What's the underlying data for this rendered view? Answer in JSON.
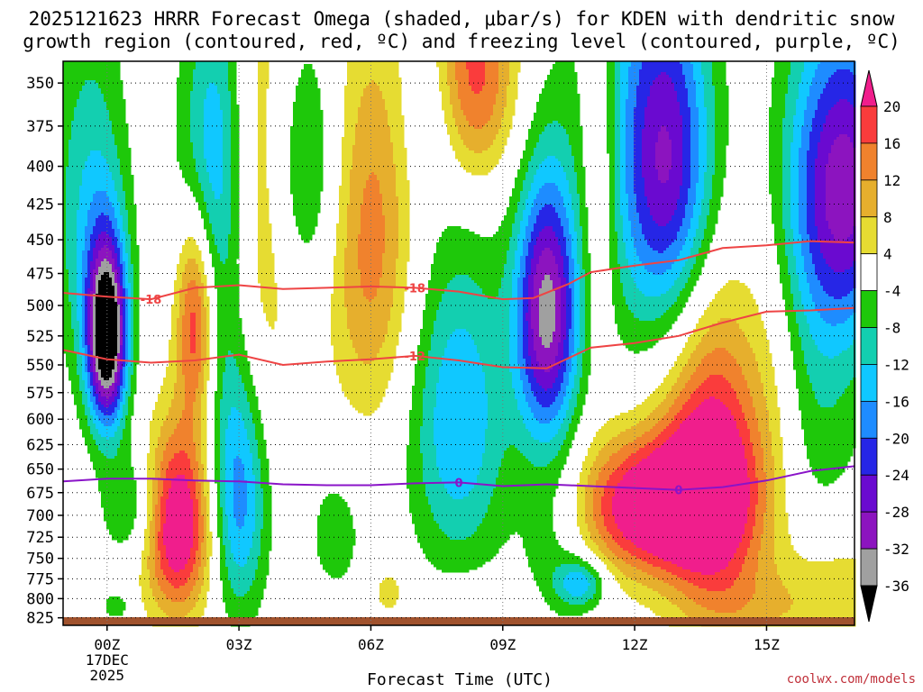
{
  "title_line1": "2025121623 HRRR Forecast Omega (shaded, μbar/s) for KDEN with dendritic snow",
  "title_line2": "growth region (contoured, red, ºC) and freezing level (contoured, purple, ºC)",
  "credit": "coolwx.com/models",
  "colors": {
    "dendritic": "#ee4444",
    "freezing": "#8a14c8",
    "ground": "#a0522d"
  },
  "chart_data": {
    "type": "heatmap",
    "xlabel": "Forecast Time (UTC)",
    "ylabel": "",
    "x_range_hours": [
      -1,
      17
    ],
    "y_range_mb": [
      338,
      835
    ],
    "y_scale": "log",
    "grid": true,
    "x_ticks": [
      {
        "hour": 0,
        "label": "00Z",
        "sub1": "17DEC",
        "sub2": "2025"
      },
      {
        "hour": 3,
        "label": "03Z"
      },
      {
        "hour": 6,
        "label": "06Z"
      },
      {
        "hour": 9,
        "label": "09Z"
      },
      {
        "hour": 12,
        "label": "12Z"
      },
      {
        "hour": 15,
        "label": "15Z"
      }
    ],
    "y_ticks": [
      350,
      375,
      400,
      425,
      450,
      475,
      500,
      525,
      550,
      575,
      600,
      625,
      650,
      675,
      700,
      725,
      750,
      775,
      800,
      825
    ],
    "colorbar": {
      "labels": [
        20,
        16,
        12,
        8,
        4,
        -4,
        -8,
        -12,
        -16,
        -20,
        -24,
        -28,
        -32,
        -36
      ],
      "bins": [
        {
          "lo": -100,
          "hi": -36,
          "color": "#000000"
        },
        {
          "lo": -36,
          "hi": -32,
          "color": "#a0a0a0"
        },
        {
          "lo": -32,
          "hi": -28,
          "color": "#8c14bf"
        },
        {
          "lo": -28,
          "hi": -24,
          "color": "#6a0ad0"
        },
        {
          "lo": -24,
          "hi": -20,
          "color": "#2626e6"
        },
        {
          "lo": -20,
          "hi": -16,
          "color": "#1e8cff"
        },
        {
          "lo": -16,
          "hi": -12,
          "color": "#10c8ff"
        },
        {
          "lo": -12,
          "hi": -8,
          "color": "#13cfb0"
        },
        {
          "lo": -8,
          "hi": -4,
          "color": "#1ec80a"
        },
        {
          "lo": -4,
          "hi": 4,
          "color": "#ffffff"
        },
        {
          "lo": 4,
          "hi": 8,
          "color": "#e6dc32"
        },
        {
          "lo": 8,
          "hi": 12,
          "color": "#e6af2d"
        },
        {
          "lo": 12,
          "hi": 16,
          "color": "#f0822d"
        },
        {
          "lo": 16,
          "hi": 20,
          "color": "#fa3c3c"
        },
        {
          "lo": 20,
          "hi": 100,
          "color": "#f01e8c"
        }
      ]
    },
    "omega_centers": [
      {
        "hour": 0.0,
        "mb": 525,
        "amp": -42,
        "sx": 0.32,
        "sy": 55
      },
      {
        "hour": -0.4,
        "mb": 430,
        "amp": -12,
        "sx": 0.6,
        "sy": 90
      },
      {
        "hour": 0.6,
        "mb": 690,
        "amp": -10,
        "sx": 0.5,
        "sy": 45
      },
      {
        "hour": 1.6,
        "mb": 710,
        "amp": 27,
        "sx": 0.55,
        "sy": 75
      },
      {
        "hour": 2.0,
        "mb": 510,
        "amp": 19,
        "sx": 0.3,
        "sy": 60
      },
      {
        "hour": 2.2,
        "mb": 390,
        "amp": -10,
        "sx": 0.5,
        "sy": 60
      },
      {
        "hour": 3.0,
        "mb": 680,
        "amp": -18,
        "sx": 0.45,
        "sy": 95
      },
      {
        "hour": 2.6,
        "mb": 430,
        "amp": -7,
        "sx": 0.4,
        "sy": 140
      },
      {
        "hour": 3.6,
        "mb": 420,
        "amp": 8,
        "sx": 0.5,
        "sy": 130
      },
      {
        "hour": 4.5,
        "mb": 400,
        "amp": -10,
        "sx": 0.6,
        "sy": 60
      },
      {
        "hour": 6.0,
        "mb": 450,
        "amp": 14,
        "sx": 0.7,
        "sy": 100
      },
      {
        "hour": 5.2,
        "mb": 720,
        "amp": -6,
        "sx": 0.5,
        "sy": 60
      },
      {
        "hour": 6.4,
        "mb": 790,
        "amp": 6,
        "sx": 0.3,
        "sy": 25
      },
      {
        "hour": 8.0,
        "mb": 600,
        "amp": -16,
        "sx": 0.8,
        "sy": 110
      },
      {
        "hour": 8.3,
        "mb": 345,
        "amp": 19,
        "sx": 0.7,
        "sy": 45
      },
      {
        "hour": 7.4,
        "mb": 360,
        "amp": -7,
        "sx": 0.5,
        "sy": 40
      },
      {
        "hour": 10.0,
        "mb": 505,
        "amp": -33,
        "sx": 0.5,
        "sy": 75
      },
      {
        "hour": 10.2,
        "mb": 720,
        "amp": -8,
        "sx": 0.6,
        "sy": 80
      },
      {
        "hour": 11.2,
        "mb": 400,
        "amp": 9,
        "sx": 0.3,
        "sy": 90
      },
      {
        "hour": 12.5,
        "mb": 690,
        "amp": 28,
        "sx": 1.3,
        "sy": 55
      },
      {
        "hour": 13.8,
        "mb": 640,
        "amp": 22,
        "sx": 0.8,
        "sy": 110
      },
      {
        "hour": 10.8,
        "mb": 780,
        "amp": -14,
        "sx": 0.4,
        "sy": 22
      },
      {
        "hour": 12.8,
        "mb": 400,
        "amp": -22,
        "sx": 0.7,
        "sy": 75
      },
      {
        "hour": 12.0,
        "mb": 370,
        "amp": -10,
        "sx": 1.0,
        "sy": 120
      },
      {
        "hour": 16.8,
        "mb": 410,
        "amp": -28,
        "sx": 0.9,
        "sy": 75
      },
      {
        "hour": 16.0,
        "mb": 560,
        "amp": -8,
        "sx": 0.9,
        "sy": 130
      },
      {
        "hour": 15.2,
        "mb": 560,
        "amp": 6,
        "sx": 0.5,
        "sy": 110
      },
      {
        "hour": 16.6,
        "mb": 800,
        "amp": 8,
        "sx": 1.0,
        "sy": 60
      },
      {
        "hour": 14.5,
        "mb": 810,
        "amp": 6,
        "sx": 1.0,
        "sy": 40
      },
      {
        "hour": 8.5,
        "mb": 810,
        "amp": 5,
        "sx": 0.8,
        "sy": 25
      },
      {
        "hour": 0.2,
        "mb": 810,
        "amp": -8,
        "sx": 0.2,
        "sy": 12
      }
    ],
    "contours": [
      {
        "label": "-18",
        "kind": "dendritic",
        "label_points": [
          {
            "hour": 1.0,
            "mb": 495
          },
          {
            "hour": 7.0,
            "mb": 486
          }
        ],
        "points": [
          [
            -1,
            490
          ],
          [
            0,
            493
          ],
          [
            1,
            495
          ],
          [
            2,
            486
          ],
          [
            3,
            484
          ],
          [
            4,
            487
          ],
          [
            5,
            486
          ],
          [
            6,
            485
          ],
          [
            7,
            486
          ],
          [
            8,
            489
          ],
          [
            9,
            495
          ],
          [
            9.7,
            494
          ],
          [
            10.5,
            483
          ],
          [
            11,
            474
          ],
          [
            12,
            469
          ],
          [
            13,
            465
          ],
          [
            14,
            456
          ],
          [
            15,
            454
          ],
          [
            16,
            451
          ],
          [
            17,
            452
          ]
        ]
      },
      {
        "label": "-12",
        "kind": "dendritic",
        "label_points": [
          {
            "hour": 7.0,
            "mb": 542
          }
        ],
        "points": [
          [
            -1,
            537
          ],
          [
            0,
            545
          ],
          [
            1,
            548
          ],
          [
            2,
            546
          ],
          [
            3,
            541
          ],
          [
            4,
            550
          ],
          [
            5,
            547
          ],
          [
            6,
            545
          ],
          [
            7,
            542
          ],
          [
            8,
            546
          ],
          [
            9,
            552
          ],
          [
            10,
            553
          ],
          [
            11,
            535
          ],
          [
            12,
            531
          ],
          [
            13,
            525
          ],
          [
            14,
            514
          ],
          [
            15,
            505
          ],
          [
            16,
            504
          ],
          [
            17,
            502
          ]
        ]
      },
      {
        "label": "0",
        "kind": "freezing",
        "label_points": [
          {
            "hour": 8.0,
            "mb": 664
          },
          {
            "hour": 13.0,
            "mb": 672
          }
        ],
        "points": [
          [
            -1,
            663
          ],
          [
            0,
            660
          ],
          [
            1,
            660
          ],
          [
            2,
            662
          ],
          [
            3,
            663
          ],
          [
            4,
            666
          ],
          [
            5,
            667
          ],
          [
            6,
            667
          ],
          [
            7,
            665
          ],
          [
            8,
            664
          ],
          [
            9,
            668
          ],
          [
            10,
            666
          ],
          [
            11,
            668
          ],
          [
            12,
            670
          ],
          [
            13,
            672
          ],
          [
            14,
            669
          ],
          [
            15,
            662
          ],
          [
            16,
            652
          ],
          [
            16.8,
            648
          ],
          [
            17,
            647
          ]
        ]
      }
    ]
  }
}
